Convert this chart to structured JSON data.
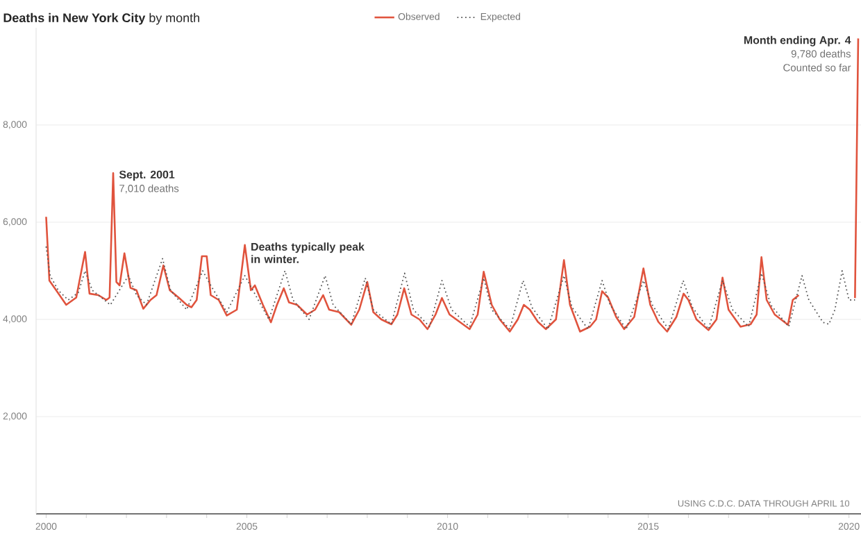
{
  "chart_data": {
    "type": "line",
    "title": "**Deaths in New York City** by month",
    "legend": "top",
    "grid": "y",
    "marker": "none",
    "ylim": [
      0,
      10000
    ],
    "yticks": [
      {
        "value": 2000,
        "label": "2,000"
      },
      {
        "value": 4000,
        "label": "4,000"
      },
      {
        "value": 6000,
        "label": "6,000"
      },
      {
        "value": 8000,
        "label": "8,000"
      }
    ],
    "xlim": [
      1999.75,
      2020.3
    ],
    "xticks": [
      2000,
      {
        "value": 2001,
        "label": null
      },
      {
        "value": 2002,
        "label": null
      },
      {
        "value": 2003,
        "label": null
      },
      {
        "value": 2004,
        "label": null
      },
      2005,
      {
        "value": 2006,
        "label": null
      },
      {
        "value": 2007,
        "label": null
      },
      {
        "value": 2008,
        "label": null
      },
      {
        "value": 2009,
        "label": null
      },
      2010,
      {
        "value": 2011,
        "label": null
      },
      {
        "value": 2012,
        "label": null
      },
      {
        "value": 2013,
        "label": null
      },
      {
        "value": 2014,
        "label": null
      },
      2015,
      {
        "value": 2016,
        "label": null
      },
      {
        "value": 2017,
        "label": null
      },
      {
        "value": 2018,
        "label": null
      },
      {
        "value": 2019,
        "label": null
      },
      2020
    ],
    "series": [
      {
        "name": "Observed",
        "color": "#e0533d",
        "line_style": "solid",
        "x": [
          2000.0,
          2000.08,
          2000.25,
          2000.5,
          2000.75,
          2000.97,
          2001.08,
          2001.3,
          2001.5,
          2001.58,
          2001.67,
          2001.75,
          2001.83,
          2001.95,
          2002.1,
          2002.25,
          2002.42,
          2002.6,
          2002.75,
          2002.92,
          2003.08,
          2003.3,
          2003.5,
          2003.62,
          2003.75,
          2003.88,
          2004.0,
          2004.1,
          2004.3,
          2004.5,
          2004.75,
          2004.95,
          2005.1,
          2005.2,
          2005.4,
          2005.6,
          2005.75,
          2005.92,
          2006.05,
          2006.25,
          2006.5,
          2006.7,
          2006.9,
          2007.05,
          2007.3,
          2007.6,
          2007.8,
          2008.0,
          2008.15,
          2008.35,
          2008.6,
          2008.75,
          2008.92,
          2009.1,
          2009.3,
          2009.5,
          2009.7,
          2009.86,
          2010.05,
          2010.3,
          2010.55,
          2010.75,
          2010.9,
          2011.1,
          2011.3,
          2011.55,
          2011.75,
          2011.9,
          2012.05,
          2012.25,
          2012.45,
          2012.7,
          2012.9,
          2013.05,
          2013.3,
          2013.55,
          2013.7,
          2013.85,
          2014.0,
          2014.2,
          2014.4,
          2014.65,
          2014.88,
          2015.05,
          2015.25,
          2015.47,
          2015.7,
          2015.88,
          2016.0,
          2016.2,
          2016.5,
          2016.7,
          2016.85,
          2017.0,
          2017.3,
          2017.55,
          2017.7,
          2017.82,
          2017.95,
          2018.15,
          2018.48,
          2018.6,
          2018.75,
          2019.4,
          2020.15,
          2020.23
        ],
        "values": [
          6110,
          4800,
          4600,
          4300,
          4450,
          5390,
          4530,
          4500,
          4400,
          4450,
          7010,
          4770,
          4700,
          5360,
          4650,
          4600,
          4220,
          4400,
          4500,
          5110,
          4600,
          4450,
          4300,
          4250,
          4400,
          5300,
          5300,
          4500,
          4400,
          4080,
          4200,
          5530,
          4600,
          4700,
          4300,
          3940,
          4300,
          4640,
          4350,
          4300,
          4100,
          4200,
          4500,
          4200,
          4150,
          3890,
          4200,
          4770,
          4150,
          4000,
          3900,
          4100,
          4640,
          4100,
          4000,
          3800,
          4100,
          4440,
          4100,
          3950,
          3800,
          4100,
          4980,
          4300,
          4000,
          3750,
          4000,
          4300,
          4200,
          3950,
          3800,
          4000,
          5220,
          4300,
          3750,
          3850,
          4000,
          4580,
          4450,
          4050,
          3800,
          4050,
          5050,
          4300,
          3950,
          3750,
          4050,
          4530,
          4400,
          4000,
          3780,
          4000,
          4860,
          4200,
          3850,
          3900,
          4100,
          5280,
          4400,
          4100,
          3890,
          4400,
          4500,
          null,
          4440,
          9780
        ]
      },
      {
        "name": "Expected",
        "color": "#555555",
        "line_style": "dotted",
        "x": [
          2000.0,
          2000.1,
          2000.3,
          2000.55,
          2000.8,
          2000.97,
          2001.15,
          2001.6,
          2001.9,
          2002.05,
          2002.25,
          2002.5,
          2002.9,
          2003.1,
          2003.5,
          2003.9,
          2004.1,
          2004.5,
          2004.95,
          2005.15,
          2005.55,
          2005.95,
          2006.15,
          2006.55,
          2006.95,
          2007.15,
          2007.6,
          2007.95,
          2008.15,
          2008.6,
          2008.93,
          2009.15,
          2009.55,
          2009.86,
          2010.1,
          2010.55,
          2010.9,
          2011.1,
          2011.55,
          2011.88,
          2012.1,
          2012.5,
          2012.9,
          2013.1,
          2013.5,
          2013.85,
          2014.05,
          2014.45,
          2014.88,
          2015.1,
          2015.5,
          2015.87,
          2016.1,
          2016.5,
          2016.85,
          2017.1,
          2017.5,
          2017.82,
          2018.05,
          2018.5,
          2018.83,
          2019.0,
          2019.35,
          2019.5,
          2019.65,
          2019.83,
          2020.0,
          2020.15
        ],
        "values": [
          5500,
          4900,
          4600,
          4400,
          4550,
          5000,
          4600,
          4300,
          4700,
          4900,
          4500,
          4300,
          5250,
          4600,
          4200,
          5000,
          4700,
          4150,
          4900,
          4600,
          4000,
          5000,
          4400,
          4000,
          4900,
          4300,
          3900,
          4850,
          4200,
          3900,
          4950,
          4200,
          3850,
          4800,
          4200,
          3850,
          4850,
          4200,
          3800,
          4800,
          4250,
          3800,
          4900,
          4250,
          3800,
          4800,
          4300,
          3800,
          4800,
          4300,
          3800,
          4800,
          4250,
          3800,
          4800,
          4200,
          3850,
          4950,
          4300,
          3850,
          4900,
          4400,
          3940,
          3900,
          4200,
          5000,
          4400,
          4400
        ]
      }
    ],
    "annotations": [
      {
        "text": "Sept. 2001",
        "x": 2001.67,
        "y": 7010
      },
      {
        "text": "7,010 deaths",
        "x": 2001.67,
        "y": 7010
      },
      {
        "text": "Deaths typically peak in winter.",
        "x": 2004.95,
        "y": 5530
      },
      {
        "text": "Month ending Apr. 4",
        "x": 2020.23,
        "y": 9780
      },
      {
        "text": "9,780 deaths",
        "x": 2020.23,
        "y": 9780
      },
      {
        "text": "Counted so far",
        "x": 2020.23,
        "y": 9780
      },
      "USING C.D.C. DATA THROUGH APRIL 10"
    ]
  }
}
